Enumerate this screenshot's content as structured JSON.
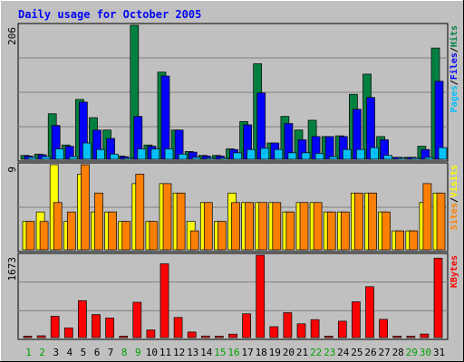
{
  "chart_data": {
    "type": "bar",
    "title": "Daily usage for October 2005",
    "categories": [
      "1",
      "2",
      "3",
      "4",
      "5",
      "6",
      "7",
      "8",
      "9",
      "10",
      "11",
      "12",
      "13",
      "14",
      "15",
      "16",
      "17",
      "18",
      "19",
      "20",
      "21",
      "22",
      "23",
      "24",
      "25",
      "26",
      "27",
      "28",
      "29",
      "30",
      "31"
    ],
    "weekend_days": [
      "1",
      "2",
      "8",
      "9",
      "15",
      "16",
      "22",
      "23",
      "29",
      "30"
    ],
    "panels": [
      {
        "name": "hits-files-pages",
        "ymax_label": "206",
        "ylim": [
          0,
          206
        ],
        "axis_labels": [
          {
            "text": "Pages",
            "color": "#00c0ff"
          },
          {
            "text": "/",
            "color": "#000000"
          },
          {
            "text": "Files",
            "color": "#0000ff"
          },
          {
            "text": "/",
            "color": "#000000"
          },
          {
            "text": "Hits",
            "color": "#008040"
          }
        ],
        "series": [
          {
            "name": "Hits",
            "color": "#008040",
            "values": [
              6,
              8,
              70,
              22,
              92,
              64,
              45,
              5,
              206,
              22,
              134,
              45,
              12,
              6,
              6,
              16,
              58,
              147,
              25,
              66,
              45,
              60,
              35,
              36,
              100,
              131,
              35,
              3,
              3,
              20,
              171
            ]
          },
          {
            "name": "Files",
            "color": "#0000ff",
            "values": [
              5,
              7,
              52,
              20,
              88,
              45,
              32,
              4,
              66,
              20,
              128,
              45,
              11,
              5,
              5,
              15,
              53,
              102,
              25,
              55,
              30,
              35,
              35,
              35,
              77,
              95,
              30,
              3,
              3,
              15,
              120
            ]
          },
          {
            "name": "Pages",
            "color": "#00c0ff",
            "values": [
              3,
              4,
              16,
              4,
              25,
              15,
              8,
              2,
              16,
              16,
              16,
              8,
              3,
              2,
              2,
              10,
              15,
              17,
              15,
              10,
              10,
              9,
              4,
              15,
              15,
              18,
              6,
              1,
              1,
              3,
              18
            ]
          }
        ]
      },
      {
        "name": "visits-sites",
        "ymax_label": "9",
        "ylim": [
          0,
          9
        ],
        "axis_labels": [
          {
            "text": "Sites",
            "color": "#ff8000"
          },
          {
            "text": "/",
            "color": "#000000"
          },
          {
            "text": "Visits",
            "color": "#ffff00"
          }
        ],
        "series": [
          {
            "name": "Visits",
            "color": "#ffff00",
            "values": [
              3,
              4,
              9,
              3,
              8,
              4,
              4,
              3,
              7,
              3,
              7,
              6,
              3,
              5,
              3,
              6,
              5,
              5,
              5,
              4,
              5,
              5,
              4,
              4,
              6,
              6,
              4,
              2,
              2,
              5,
              6
            ]
          },
          {
            "name": "Sites",
            "color": "#ff8000",
            "values": [
              3,
              3,
              5,
              4,
              9,
              6,
              4,
              3,
              8,
              3,
              7,
              6,
              2,
              5,
              3,
              5,
              5,
              5,
              5,
              4,
              5,
              5,
              4,
              4,
              6,
              6,
              4,
              2,
              2,
              7,
              6
            ]
          }
        ]
      },
      {
        "name": "kbytes",
        "ymax_label": "1673",
        "ylim": [
          0,
          1673
        ],
        "axis_labels": [
          {
            "text": "KBytes",
            "color": "#ff0000"
          }
        ],
        "series": [
          {
            "name": "KBytes",
            "color": "#ff0000",
            "values": [
              18,
              36,
              432,
              197,
              751,
              467,
              398,
              12,
              717,
              155,
              1499,
              409,
              113,
              32,
              20,
              69,
              484,
              1673,
              220,
              506,
              280,
              364,
              15,
              333,
              727,
              1033,
              369,
              12,
              10,
              72,
              1612
            ]
          }
        ]
      }
    ],
    "colors": {
      "background": "#c0c0c0",
      "title": "#0000ff",
      "weekend_label": "#00a000",
      "weekday_label": "#000000",
      "grid": "#808080"
    }
  }
}
